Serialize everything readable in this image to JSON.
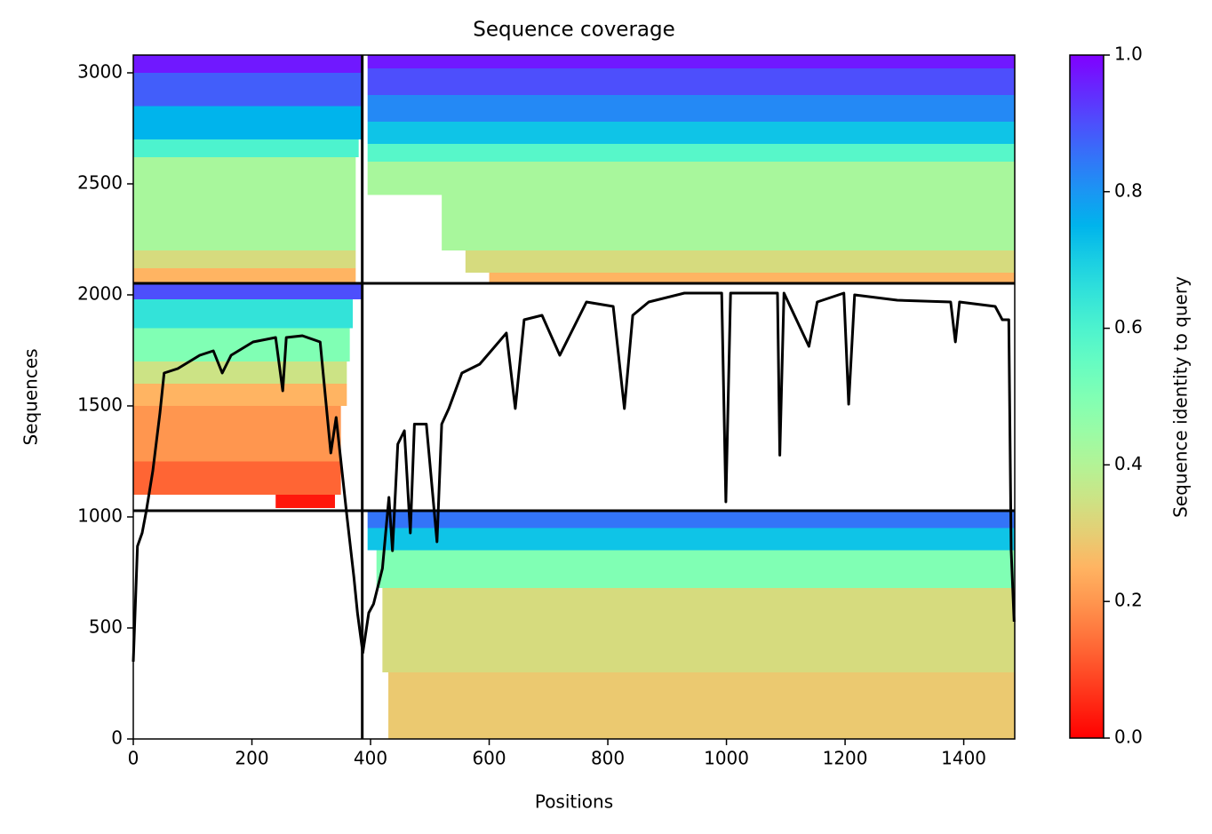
{
  "chart_data": {
    "type": "coverage",
    "title": "Sequence coverage",
    "x_label": "Positions",
    "y_label": "Sequences",
    "colorbar_label": "Sequence identity to query",
    "xlim": [
      0,
      1486
    ],
    "ylim": [
      0,
      3080
    ],
    "xticks": [
      0,
      200,
      400,
      600,
      800,
      1000,
      1200,
      1400
    ],
    "yticks": [
      0,
      500,
      1000,
      1500,
      2000,
      2500,
      3000
    ],
    "clim": [
      0,
      1
    ],
    "cticks": [
      {
        "value": 0,
        "label": "0.0"
      },
      0.2,
      0.4,
      0.6,
      0.8,
      {
        "value": 1,
        "label": "1.0"
      }
    ],
    "colormap": "rainbow_r",
    "line_color": "#000000",
    "boundaries_x": [
      386
    ],
    "boundaries_y": [
      1028,
      2052
    ],
    "blocks": [
      {
        "x": [
          0,
          386
        ],
        "y": [
          3000,
          3080
        ],
        "identity": 0.97
      },
      {
        "x": [
          0,
          386
        ],
        "y": [
          2850,
          3000
        ],
        "identity": 0.88
      },
      {
        "x": [
          0,
          386
        ],
        "y": [
          2700,
          2850
        ],
        "identity": 0.75
      },
      {
        "x": [
          0,
          380
        ],
        "y": [
          2620,
          2700
        ],
        "identity": 0.6
      },
      {
        "x": [
          0,
          375
        ],
        "y": [
          2200,
          2620
        ],
        "identity": 0.42
      },
      {
        "x": [
          0,
          375
        ],
        "y": [
          2120,
          2200
        ],
        "identity": 0.33
      },
      {
        "x": [
          0,
          375
        ],
        "y": [
          2052,
          2120
        ],
        "identity": 0.25
      },
      {
        "x": [
          0,
          386
        ],
        "y": [
          1980,
          2052
        ],
        "identity": 0.9
      },
      {
        "x": [
          0,
          370
        ],
        "y": [
          1850,
          1980
        ],
        "identity": 0.65
      },
      {
        "x": [
          0,
          365
        ],
        "y": [
          1700,
          1850
        ],
        "identity": 0.5
      },
      {
        "x": [
          0,
          360
        ],
        "y": [
          1600,
          1700
        ],
        "identity": 0.35
      },
      {
        "x": [
          0,
          360
        ],
        "y": [
          1500,
          1600
        ],
        "identity": 0.25
      },
      {
        "x": [
          0,
          350
        ],
        "y": [
          1250,
          1500
        ],
        "identity": 0.2
      },
      {
        "x": [
          0,
          350
        ],
        "y": [
          1100,
          1250
        ],
        "identity": 0.13
      },
      {
        "x": [
          240,
          340
        ],
        "y": [
          1040,
          1100
        ],
        "identity": 0.03
      },
      {
        "x": [
          395,
          1486
        ],
        "y": [
          3020,
          3080
        ],
        "identity": 0.97
      },
      {
        "x": [
          395,
          1486
        ],
        "y": [
          2900,
          3020
        ],
        "identity": 0.9
      },
      {
        "x": [
          395,
          1486
        ],
        "y": [
          2780,
          2900
        ],
        "identity": 0.82
      },
      {
        "x": [
          395,
          1486
        ],
        "y": [
          2680,
          2780
        ],
        "identity": 0.72
      },
      {
        "x": [
          395,
          1486
        ],
        "y": [
          2600,
          2680
        ],
        "identity": 0.58
      },
      {
        "x": [
          395,
          1486
        ],
        "y": [
          2450,
          2600
        ],
        "identity": 0.42
      },
      {
        "x": [
          520,
          1486
        ],
        "y": [
          2200,
          2450
        ],
        "identity": 0.42
      },
      {
        "x": [
          560,
          1486
        ],
        "y": [
          2100,
          2200
        ],
        "identity": 0.33
      },
      {
        "x": [
          600,
          1486
        ],
        "y": [
          2052,
          2100
        ],
        "identity": 0.25
      },
      {
        "x": [
          395,
          1486
        ],
        "y": [
          950,
          1028
        ],
        "identity": 0.85
      },
      {
        "x": [
          395,
          1486
        ],
        "y": [
          850,
          950
        ],
        "identity": 0.72
      },
      {
        "x": [
          410,
          1486
        ],
        "y": [
          680,
          850
        ],
        "identity": 0.5
      },
      {
        "x": [
          420,
          1486
        ],
        "y": [
          300,
          680
        ],
        "identity": 0.33
      },
      {
        "x": [
          430,
          1486
        ],
        "y": [
          0,
          300
        ],
        "identity": 0.29
      }
    ],
    "coverage": {
      "x": [
        0,
        3,
        7,
        15,
        22,
        33,
        45,
        52,
        75,
        112,
        135,
        150,
        165,
        202,
        240,
        252,
        258,
        285,
        315,
        333,
        342,
        360,
        372,
        378,
        387,
        397,
        405,
        420,
        431,
        437,
        446,
        457,
        467,
        474,
        494,
        512,
        520,
        532,
        554,
        584,
        629,
        644,
        659,
        689,
        719,
        734,
        764,
        809,
        828,
        842,
        869,
        929,
        992,
        999,
        1007,
        1086,
        1090,
        1097,
        1139,
        1153,
        1198,
        1206,
        1216,
        1288,
        1378,
        1386,
        1393,
        1453,
        1465,
        1476,
        1480,
        1485
      ],
      "values": [
        348,
        568,
        868,
        928,
        1028,
        1208,
        1468,
        1648,
        1668,
        1728,
        1748,
        1648,
        1728,
        1788,
        1808,
        1568,
        1808,
        1816,
        1788,
        1288,
        1448,
        1008,
        728,
        568,
        388,
        568,
        608,
        768,
        1088,
        848,
        1328,
        1388,
        928,
        1418,
        1418,
        888,
        1418,
        1488,
        1648,
        1688,
        1828,
        1488,
        1888,
        1908,
        1728,
        1808,
        1968,
        1948,
        1488,
        1908,
        1968,
        2008,
        2008,
        1068,
        2008,
        2008,
        1278,
        2008,
        1768,
        1968,
        2008,
        1508,
        2000,
        1976,
        1968,
        1788,
        1968,
        1948,
        1888,
        1888,
        848,
        528
      ]
    }
  }
}
